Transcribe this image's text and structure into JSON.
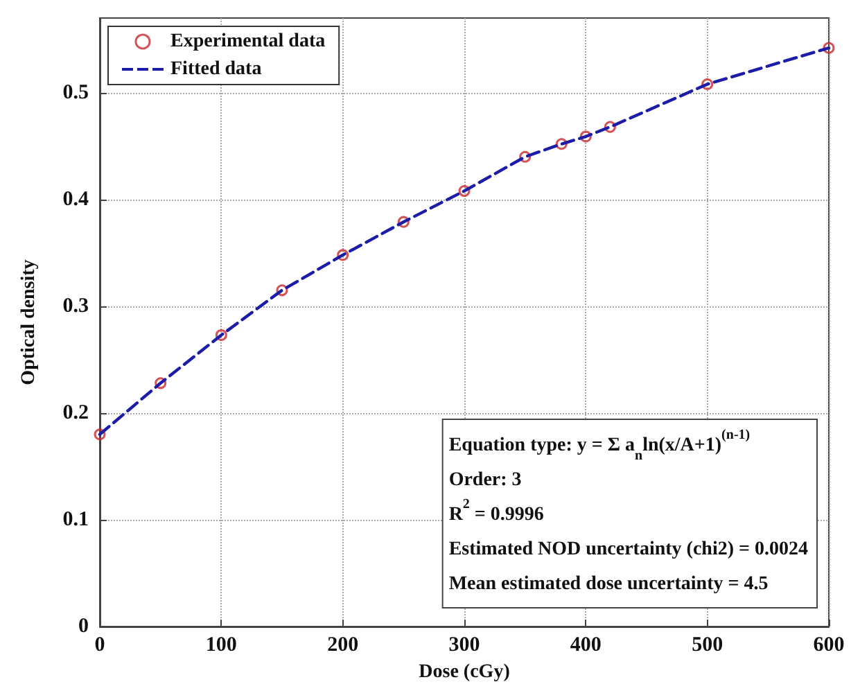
{
  "chart_data": {
    "type": "scatter",
    "xlabel": "Dose (cGy)",
    "ylabel": "Optical density",
    "xlim": [
      0,
      600
    ],
    "xticks": [
      0,
      100,
      200,
      300,
      400,
      500,
      600
    ],
    "ylim": [
      0,
      0.57
    ],
    "yticks": [
      0,
      0.1,
      0.2,
      0.3,
      0.4,
      0.5
    ],
    "grid": true,
    "legend": "top left",
    "series": [
      {
        "name": "Experimental data",
        "marker": "circle",
        "color": "#c8282c",
        "x": [
          0,
          50,
          100,
          150,
          200,
          250,
          300,
          350,
          380,
          400,
          420,
          500,
          600
        ],
        "values": [
          0.18,
          0.228,
          0.273,
          0.315,
          0.348,
          0.379,
          0.408,
          0.44,
          0.452,
          0.459,
          0.468,
          0.508,
          0.542
        ]
      },
      {
        "name": "Fitted data",
        "type": "line",
        "marker": "none",
        "line_style": "dashed",
        "color": "#1c1ca8",
        "x": [
          0,
          50,
          100,
          150,
          200,
          250,
          300,
          350,
          380,
          400,
          420,
          500,
          600
        ],
        "values": [
          0.18,
          0.228,
          0.273,
          0.315,
          0.348,
          0.379,
          0.408,
          0.44,
          0.452,
          0.459,
          0.468,
          0.508,
          0.542
        ]
      }
    ],
    "annotations": [
      "Equation type: y = Σ a$_{n}$ln(x/A+1)$^{(n-1)}$",
      "Order: 3",
      "R$^{2}$ = 0.9996",
      "Estimated NOD uncertainty (chi2) = 0.0024",
      "Mean estimated dose uncertainty = 4.5"
    ]
  }
}
